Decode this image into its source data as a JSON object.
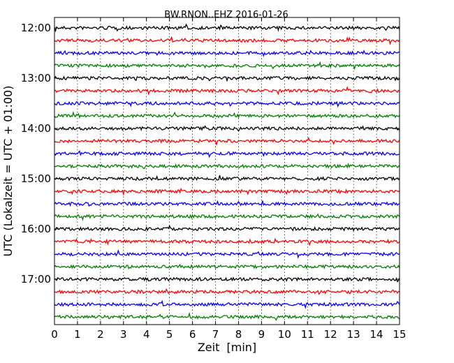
{
  "chart_data": {
    "type": "line",
    "title": "BW.RNON..EHZ 2016-01-26",
    "xlabel": "Zeit  [min]",
    "ylabel": "UTC (Lokalzeit = UTC + 01:00)",
    "xlim": [
      0,
      15
    ],
    "x_ticks": [
      "0",
      "1",
      "2",
      "3",
      "4",
      "5",
      "6",
      "7",
      "8",
      "9",
      "10",
      "11",
      "12",
      "13",
      "14",
      "15"
    ],
    "y_ticks": [
      "12:00",
      "13:00",
      "14:00",
      "15:00",
      "16:00",
      "17:00"
    ],
    "grid": true,
    "trace_colors": [
      "#000000",
      "#ff0000",
      "#0000ff",
      "#008000"
    ],
    "traces": [
      {
        "start": "12:00",
        "color": "#000000"
      },
      {
        "start": "12:15",
        "color": "#ff0000"
      },
      {
        "start": "12:30",
        "color": "#0000ff"
      },
      {
        "start": "12:45",
        "color": "#008000"
      },
      {
        "start": "13:00",
        "color": "#000000"
      },
      {
        "start": "13:15",
        "color": "#ff0000"
      },
      {
        "start": "13:30",
        "color": "#0000ff"
      },
      {
        "start": "13:45",
        "color": "#008000"
      },
      {
        "start": "14:00",
        "color": "#000000"
      },
      {
        "start": "14:15",
        "color": "#ff0000"
      },
      {
        "start": "14:30",
        "color": "#0000ff"
      },
      {
        "start": "14:45",
        "color": "#008000"
      },
      {
        "start": "15:00",
        "color": "#000000"
      },
      {
        "start": "15:15",
        "color": "#ff0000"
      },
      {
        "start": "15:30",
        "color": "#0000ff"
      },
      {
        "start": "15:45",
        "color": "#008000"
      },
      {
        "start": "16:00",
        "color": "#000000"
      },
      {
        "start": "16:15",
        "color": "#ff0000"
      },
      {
        "start": "16:30",
        "color": "#0000ff"
      },
      {
        "start": "16:45",
        "color": "#008000"
      },
      {
        "start": "17:00",
        "color": "#000000"
      },
      {
        "start": "17:15",
        "color": "#ff0000"
      },
      {
        "start": "17:30",
        "color": "#0000ff"
      },
      {
        "start": "17:45",
        "color": "#008000"
      }
    ]
  }
}
